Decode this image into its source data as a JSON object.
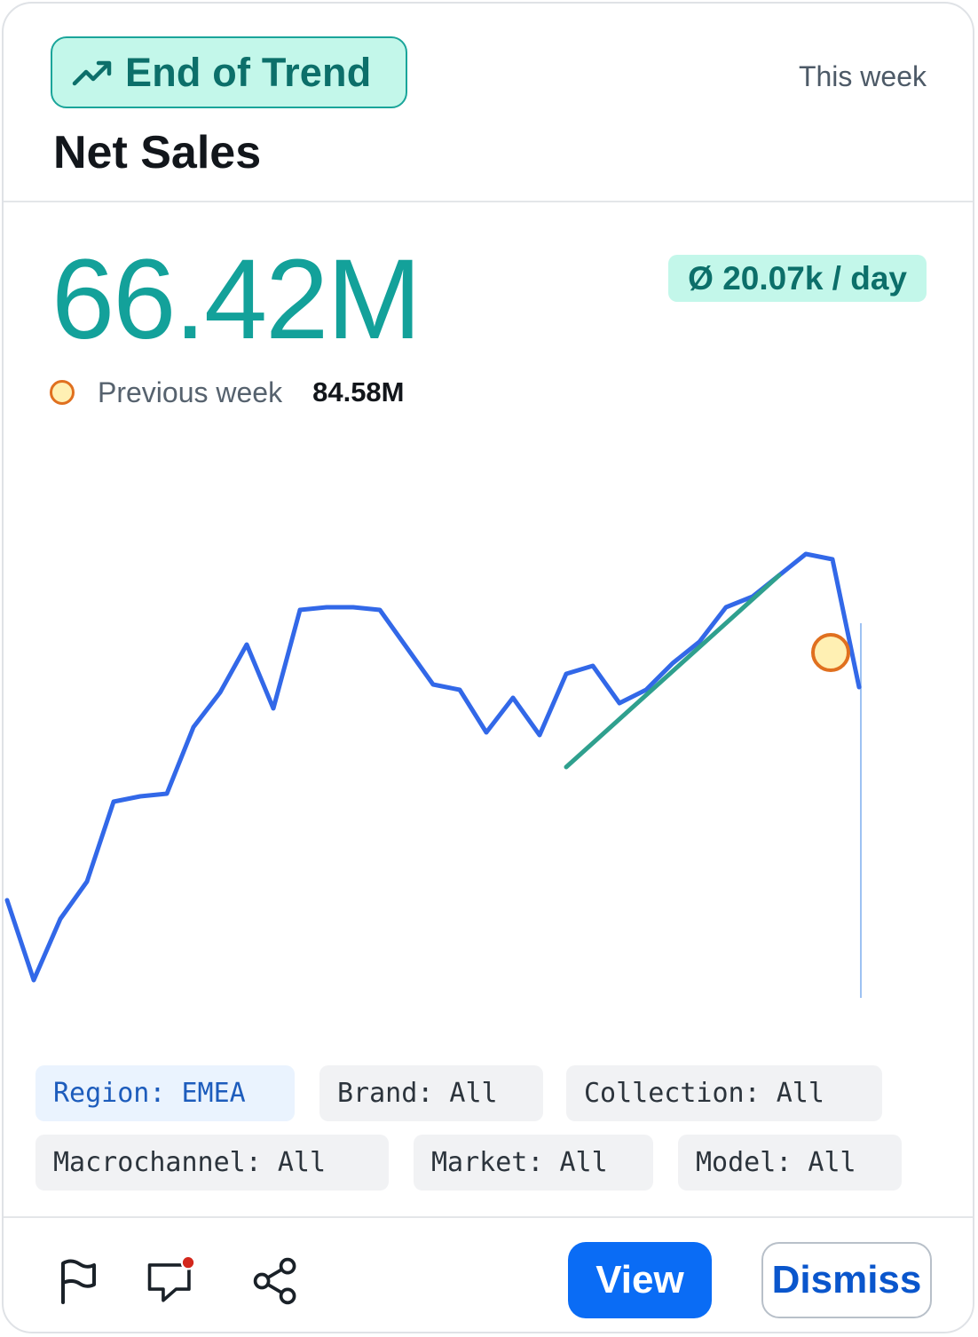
{
  "badge": {
    "icon": "trending-up-icon",
    "label": "End of Trend"
  },
  "period": "This week",
  "title": "Net Sales",
  "kpi": {
    "value": "66.42M",
    "average": "Ø 20.07k / day",
    "previous_label": "Previous week",
    "previous_value": "84.58M"
  },
  "colors": {
    "accent": "#13a19a",
    "line": "#3268e8",
    "trend": "#2fa08e",
    "marker": "#e0701f",
    "primary_button": "#0a6cf5"
  },
  "chart_data": {
    "type": "line",
    "values": [
      50,
      20,
      43,
      57,
      87,
      89,
      90,
      115,
      128,
      146,
      122,
      159,
      160,
      160,
      159,
      145,
      131,
      129,
      113,
      126,
      112,
      135,
      138,
      124,
      129,
      139,
      147,
      160,
      164,
      172,
      180,
      178,
      130
    ],
    "ylim": [
      0,
      200
    ],
    "trend_line": {
      "start": 100,
      "end": 172
    },
    "highlight": "latest peak"
  },
  "filters": [
    {
      "label": "Region: EMEA",
      "active": true
    },
    {
      "label": "Brand: All",
      "active": false
    },
    {
      "label": "Collection: All",
      "active": false
    },
    {
      "label": "Macrochannel: All",
      "active": false
    },
    {
      "label": "Market: All",
      "active": false
    },
    {
      "label": "Model: All",
      "active": false
    }
  ],
  "actions": {
    "flag_icon": "flag-icon",
    "comment_icon": "comment-icon",
    "share_icon": "share-icon",
    "view_label": "View",
    "dismiss_label": "Dismiss"
  }
}
